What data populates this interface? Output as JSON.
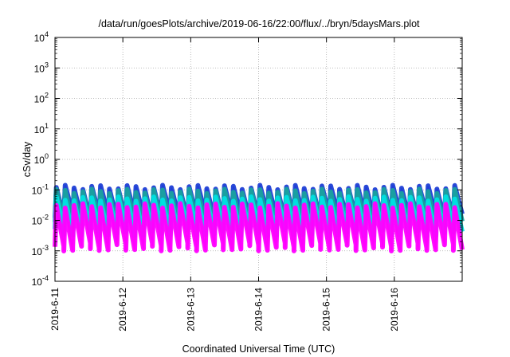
{
  "chart_data": {
    "type": "line",
    "title": "/data/run/goesPlots/archive/2019-06-16/22:00/flux/../bryn/5daysMars.plot",
    "xlabel": "Coordinated Universal Time (UTC)",
    "ylabel": "cSv/day",
    "yscale": "log",
    "ylim": [
      0.0001,
      10000
    ],
    "xlim": [
      "2019-06-11",
      "2019-06-17"
    ],
    "grid": true,
    "x_ticks": [
      "2019-6-11",
      "2019-6-12",
      "2019-6-13",
      "2019-6-14",
      "2019-6-15",
      "2019-6-16"
    ],
    "y_ticks": [
      {
        "base": "10",
        "exp": "-4",
        "value": 0.0001
      },
      {
        "base": "10",
        "exp": "-3",
        "value": 0.001
      },
      {
        "base": "10",
        "exp": "-2",
        "value": 0.01
      },
      {
        "base": "10",
        "exp": "-1",
        "value": 0.1
      },
      {
        "base": "10",
        "exp": "0",
        "value": 1
      },
      {
        "base": "10",
        "exp": "1",
        "value": 10
      },
      {
        "base": "10",
        "exp": "2",
        "value": 100
      },
      {
        "base": "10",
        "exp": "3",
        "value": 1000
      },
      {
        "base": "10",
        "exp": "4",
        "value": 10000
      }
    ],
    "oscillation": {
      "cycles_per_day": 7.6,
      "peak_value": 0.12,
      "trough_value": 0.0013,
      "band_count": 4
    },
    "series": [
      {
        "color": "#1f3fd6",
        "peak": 0.12,
        "trough": 0.012
      },
      {
        "color": "#1aa0a0",
        "peak": 0.09,
        "trough": 0.007
      },
      {
        "color": "#00e0e0",
        "peak": 0.05,
        "trough": 0.004
      },
      {
        "color": "#ff00ff",
        "peak": 0.03,
        "trough": 0.0013
      }
    ]
  }
}
